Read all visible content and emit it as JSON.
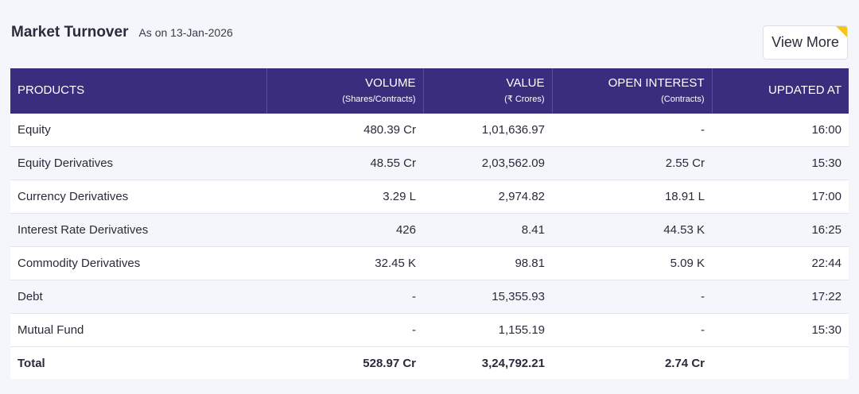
{
  "header": {
    "title": "Market Turnover",
    "as_on": "As on 13-Jan-2026",
    "view_more_label": "View More"
  },
  "table": {
    "columns": [
      {
        "label": "PRODUCTS",
        "sub": ""
      },
      {
        "label": "VOLUME",
        "sub": "(Shares/Contracts)"
      },
      {
        "label": "VALUE",
        "sub": "(₹ Crores)"
      },
      {
        "label": "OPEN INTEREST",
        "sub": "(Contracts)"
      },
      {
        "label": "UPDATED AT",
        "sub": ""
      }
    ],
    "rows": [
      [
        "Equity",
        "480.39 Cr",
        "1,01,636.97",
        "-",
        "16:00"
      ],
      [
        "Equity Derivatives",
        "48.55 Cr",
        "2,03,562.09",
        "2.55 Cr",
        "15:30"
      ],
      [
        "Currency Derivatives",
        "3.29 L",
        "2,974.82",
        "18.91 L",
        "17:00"
      ],
      [
        "Interest Rate Derivatives",
        "426",
        "8.41",
        "44.53 K",
        "16:25"
      ],
      [
        "Commodity Derivatives",
        "32.45 K",
        "98.81",
        "5.09 K",
        "22:44"
      ],
      [
        "Debt",
        "-",
        "15,355.93",
        "-",
        "17:22"
      ],
      [
        "Mutual Fund",
        "-",
        "1,155.19",
        "-",
        "15:30"
      ]
    ],
    "total": [
      "Total",
      "528.97 Cr",
      "3,24,792.21",
      "2.74 Cr",
      ""
    ]
  }
}
